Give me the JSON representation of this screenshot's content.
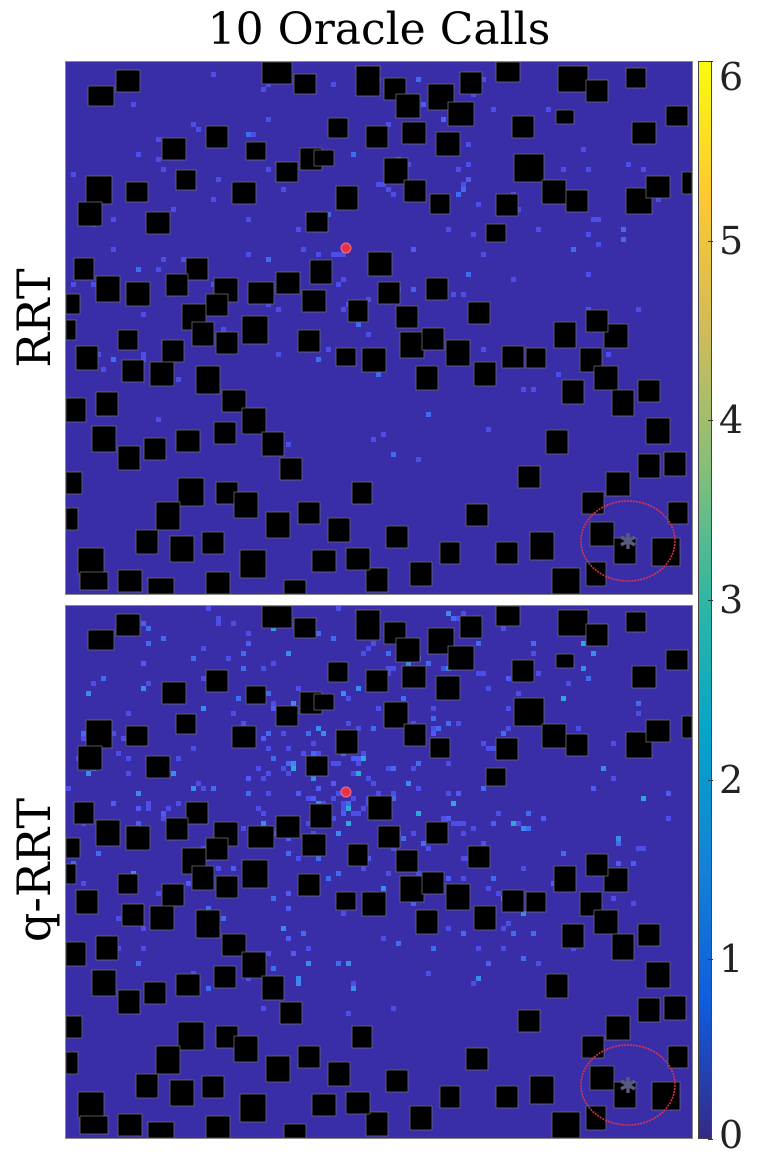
{
  "title": "10 Oracle Calls",
  "rows": [
    {
      "label": "RRT"
    },
    {
      "label": "q-RRT"
    }
  ],
  "chart_data": {
    "type": "heatmap",
    "title": "10 Oracle Calls",
    "colormap": "parula",
    "background_color": "#3a2ea8",
    "obstacle_color": "#000000",
    "goal_region_color": "#e0354a",
    "start_marker_color": "#e0354a",
    "colorbar": {
      "ticks": [
        "0",
        "1",
        "2",
        "3",
        "4",
        "5",
        "6"
      ],
      "range": [
        0,
        6
      ],
      "colors": [
        "#352a87",
        "#0f5cdd",
        "#1481d6",
        "#06a4ca",
        "#2eb7a4",
        "#87bf77",
        "#d1bb59",
        "#fec832",
        "#f9fb0e"
      ]
    },
    "panels": [
      {
        "name": "RRT",
        "visit_intensity": "low",
        "spread": "sparse"
      },
      {
        "name": "q-RRT",
        "visit_intensity": "higher",
        "spread": "dense"
      }
    ]
  }
}
